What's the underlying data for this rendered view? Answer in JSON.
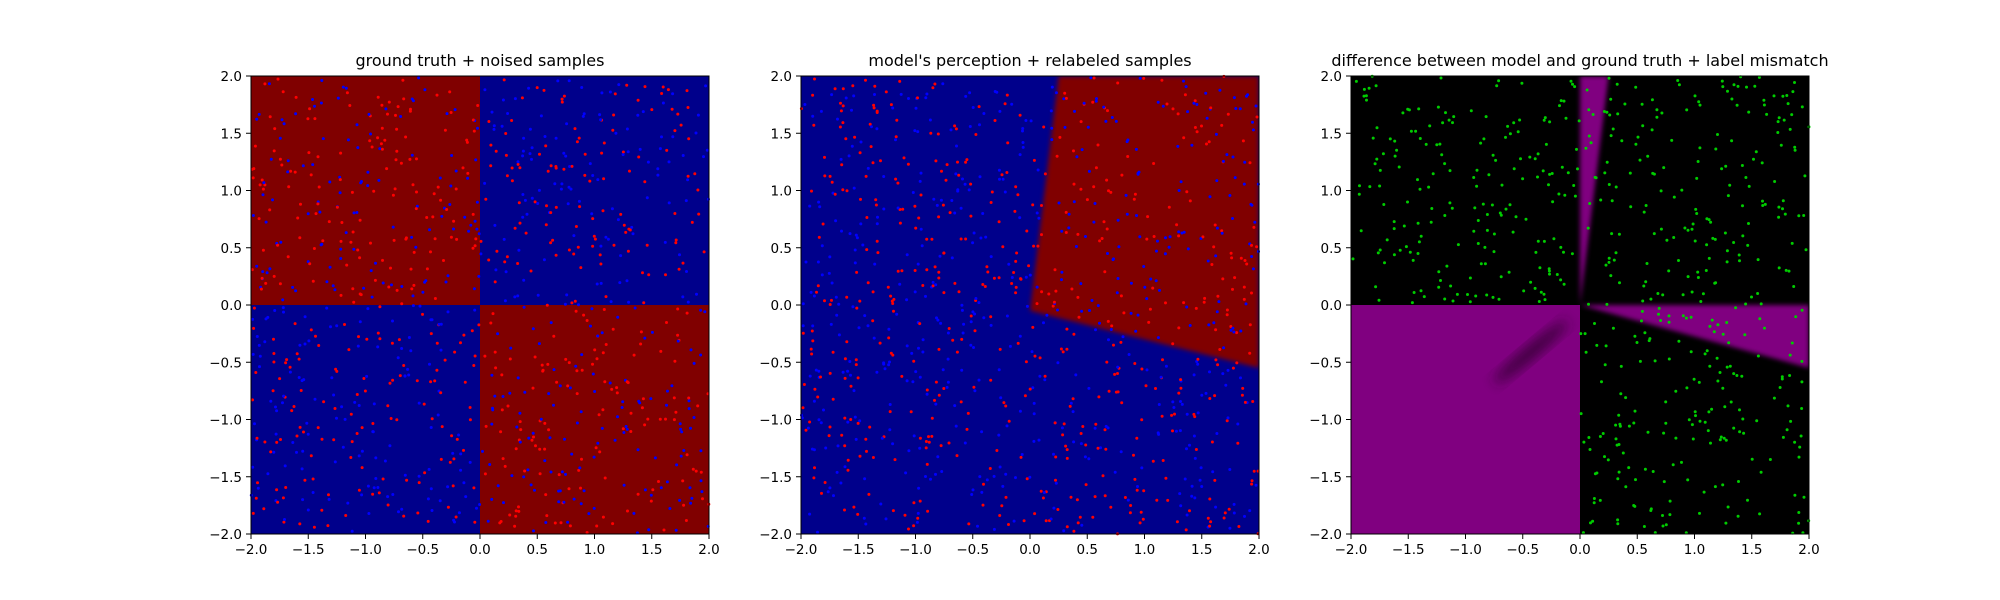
{
  "chart_data": [
    {
      "type": "heatmap",
      "title": "ground truth + noised samples",
      "xlim": [
        -2.0,
        2.0
      ],
      "ylim": [
        -2.0,
        2.0
      ],
      "xticks": [
        "−2.0",
        "−1.5",
        "−1.0",
        "−0.5",
        "0.0",
        "0.5",
        "1.0",
        "1.5",
        "2.0"
      ],
      "yticks": [
        "−2.0",
        "−1.5",
        "−1.0",
        "−0.5",
        "0.0",
        "0.5",
        "1.0",
        "1.5",
        "2.0"
      ],
      "regions": [
        {
          "x": [
            -2,
            0
          ],
          "y": [
            0,
            2
          ],
          "color": "#800000"
        },
        {
          "x": [
            0,
            2
          ],
          "y": [
            0,
            2
          ],
          "color": "#00008b"
        },
        {
          "x": [
            -2,
            0
          ],
          "y": [
            -2,
            0
          ],
          "color": "#00008b"
        },
        {
          "x": [
            0,
            2
          ],
          "y": [
            -2,
            0
          ],
          "color": "#800000"
        }
      ],
      "scatter": {
        "colors": [
          "#ff0000",
          "#0000ff"
        ],
        "point_count": 1000
      }
    },
    {
      "type": "heatmap",
      "title": "model's perception + relabeled samples",
      "xlim": [
        -2.0,
        2.0
      ],
      "ylim": [
        -2.0,
        2.0
      ],
      "xticks": [
        "−2.0",
        "−1.5",
        "−1.0",
        "−0.5",
        "0.0",
        "0.5",
        "1.0",
        "1.5",
        "2.0"
      ],
      "yticks": [
        "−2.0",
        "−1.5",
        "−1.0",
        "−0.5",
        "0.0",
        "0.5",
        "1.0",
        "1.5",
        "2.0"
      ],
      "background": "#00008b",
      "region": {
        "color": "#800000",
        "polygon": [
          [
            0.0,
            -0.05
          ],
          [
            0.25,
            2.0
          ],
          [
            2.0,
            2.0
          ],
          [
            2.0,
            -0.55
          ]
        ]
      },
      "scatter": {
        "colors": [
          "#ff0000",
          "#0000ff"
        ],
        "point_count": 1000
      }
    },
    {
      "type": "heatmap",
      "title": "difference between model and ground truth + label mismatch",
      "xlim": [
        -2.0,
        2.0
      ],
      "ylim": [
        -2.0,
        2.0
      ],
      "xticks": [
        "−2.0",
        "−1.5",
        "−1.0",
        "−0.5",
        "0.0",
        "0.5",
        "1.0",
        "1.5",
        "2.0"
      ],
      "yticks": [
        "−2.0",
        "−1.5",
        "−1.0",
        "−0.5",
        "0.0",
        "0.5",
        "1.0",
        "1.5",
        "2.0"
      ],
      "background": "#000000",
      "regions": [
        {
          "polygon": [
            [
              -2,
              -2
            ],
            [
              0,
              -2
            ],
            [
              0,
              0
            ],
            [
              -2,
              0
            ]
          ],
          "color": "#800080"
        },
        {
          "polygon": [
            [
              0,
              0
            ],
            [
              0,
              2
            ],
            [
              0.25,
              2
            ]
          ],
          "color": "#800080"
        },
        {
          "polygon": [
            [
              0,
              0
            ],
            [
              2,
              0
            ],
            [
              2,
              -0.55
            ]
          ],
          "color": "#800080"
        }
      ],
      "scatter": {
        "color": "#00cc00",
        "point_count": 750
      }
    }
  ]
}
